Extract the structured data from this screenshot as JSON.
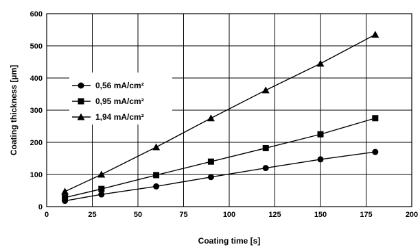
{
  "chart_data": {
    "type": "line",
    "xlabel": "Coating time [s]",
    "ylabel": "Coating thickness [µm]",
    "xlim": [
      0,
      200
    ],
    "ylim": [
      0,
      600
    ],
    "xticks": [
      "0",
      "25",
      "50",
      "75",
      "100",
      "125",
      "150",
      "175",
      "200"
    ],
    "yticks": [
      "0",
      "100",
      "200",
      "300",
      "400",
      "500",
      "600"
    ],
    "grid": true,
    "legend_position": "upper-left",
    "series": [
      {
        "name": "0,56 mA/cm²",
        "marker": "circle",
        "x": [
          10,
          30,
          60,
          90,
          120,
          150,
          180
        ],
        "y": [
          18,
          38,
          63,
          92,
          120,
          147,
          170
        ]
      },
      {
        "name": "0,95 mA/cm²",
        "marker": "square",
        "x": [
          10,
          30,
          60,
          90,
          120,
          150,
          180
        ],
        "y": [
          28,
          55,
          98,
          140,
          182,
          225,
          275
        ]
      },
      {
        "name": "1,94 mA/cm²",
        "marker": "triangle",
        "x": [
          10,
          30,
          60,
          90,
          120,
          150,
          180
        ],
        "y": [
          47,
          100,
          185,
          275,
          362,
          445,
          535
        ]
      }
    ]
  }
}
